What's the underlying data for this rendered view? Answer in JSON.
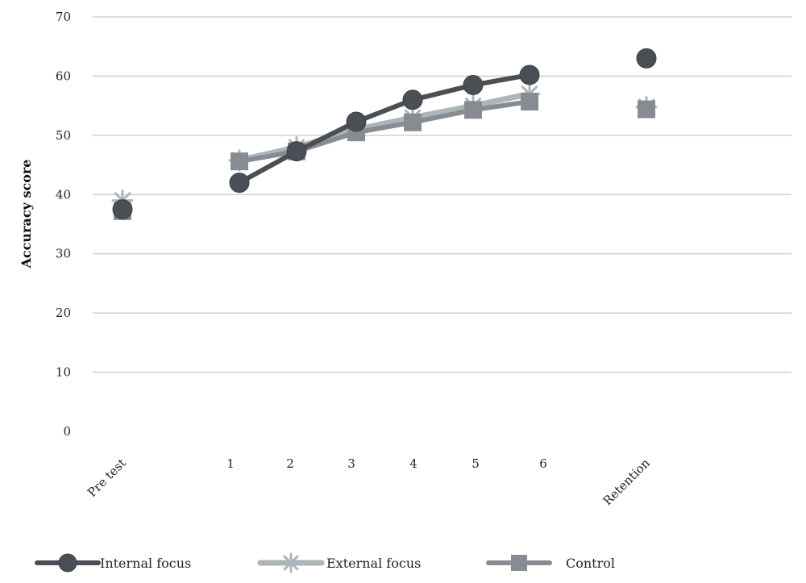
{
  "chart_data": {
    "type": "line",
    "categories": [
      "Pre test",
      "1",
      "2",
      "3",
      "4",
      "5",
      "6",
      "Retention"
    ],
    "ylabel": "Accuracy score",
    "xlabel": "",
    "ylim": [
      0,
      70
    ],
    "yticks": [
      0,
      10,
      20,
      30,
      40,
      50,
      60,
      70
    ],
    "grid": true,
    "legend_position": "bottom",
    "series": [
      {
        "name": "Internal focus",
        "marker": "circle",
        "color": "#4a4f55",
        "values": [
          37.5,
          42.0,
          47.3,
          52.3,
          56.0,
          58.5,
          60.2,
          63.0
        ],
        "connected": [
          false,
          true,
          true,
          true,
          true,
          true,
          true,
          false
        ]
      },
      {
        "name": "External focus",
        "marker": "star",
        "color": "#aeb5b9",
        "values": [
          39.0,
          45.8,
          48.0,
          51.0,
          53.0,
          55.0,
          57.0,
          54.8
        ],
        "connected": [
          false,
          true,
          true,
          true,
          true,
          true,
          true,
          false
        ]
      },
      {
        "name": "Control",
        "marker": "square",
        "color": "#868c91",
        "values": [
          37.2,
          45.6,
          47.3,
          50.5,
          52.2,
          54.3,
          55.7,
          54.4
        ],
        "connected": [
          false,
          true,
          true,
          true,
          true,
          true,
          true,
          false
        ]
      }
    ]
  }
}
